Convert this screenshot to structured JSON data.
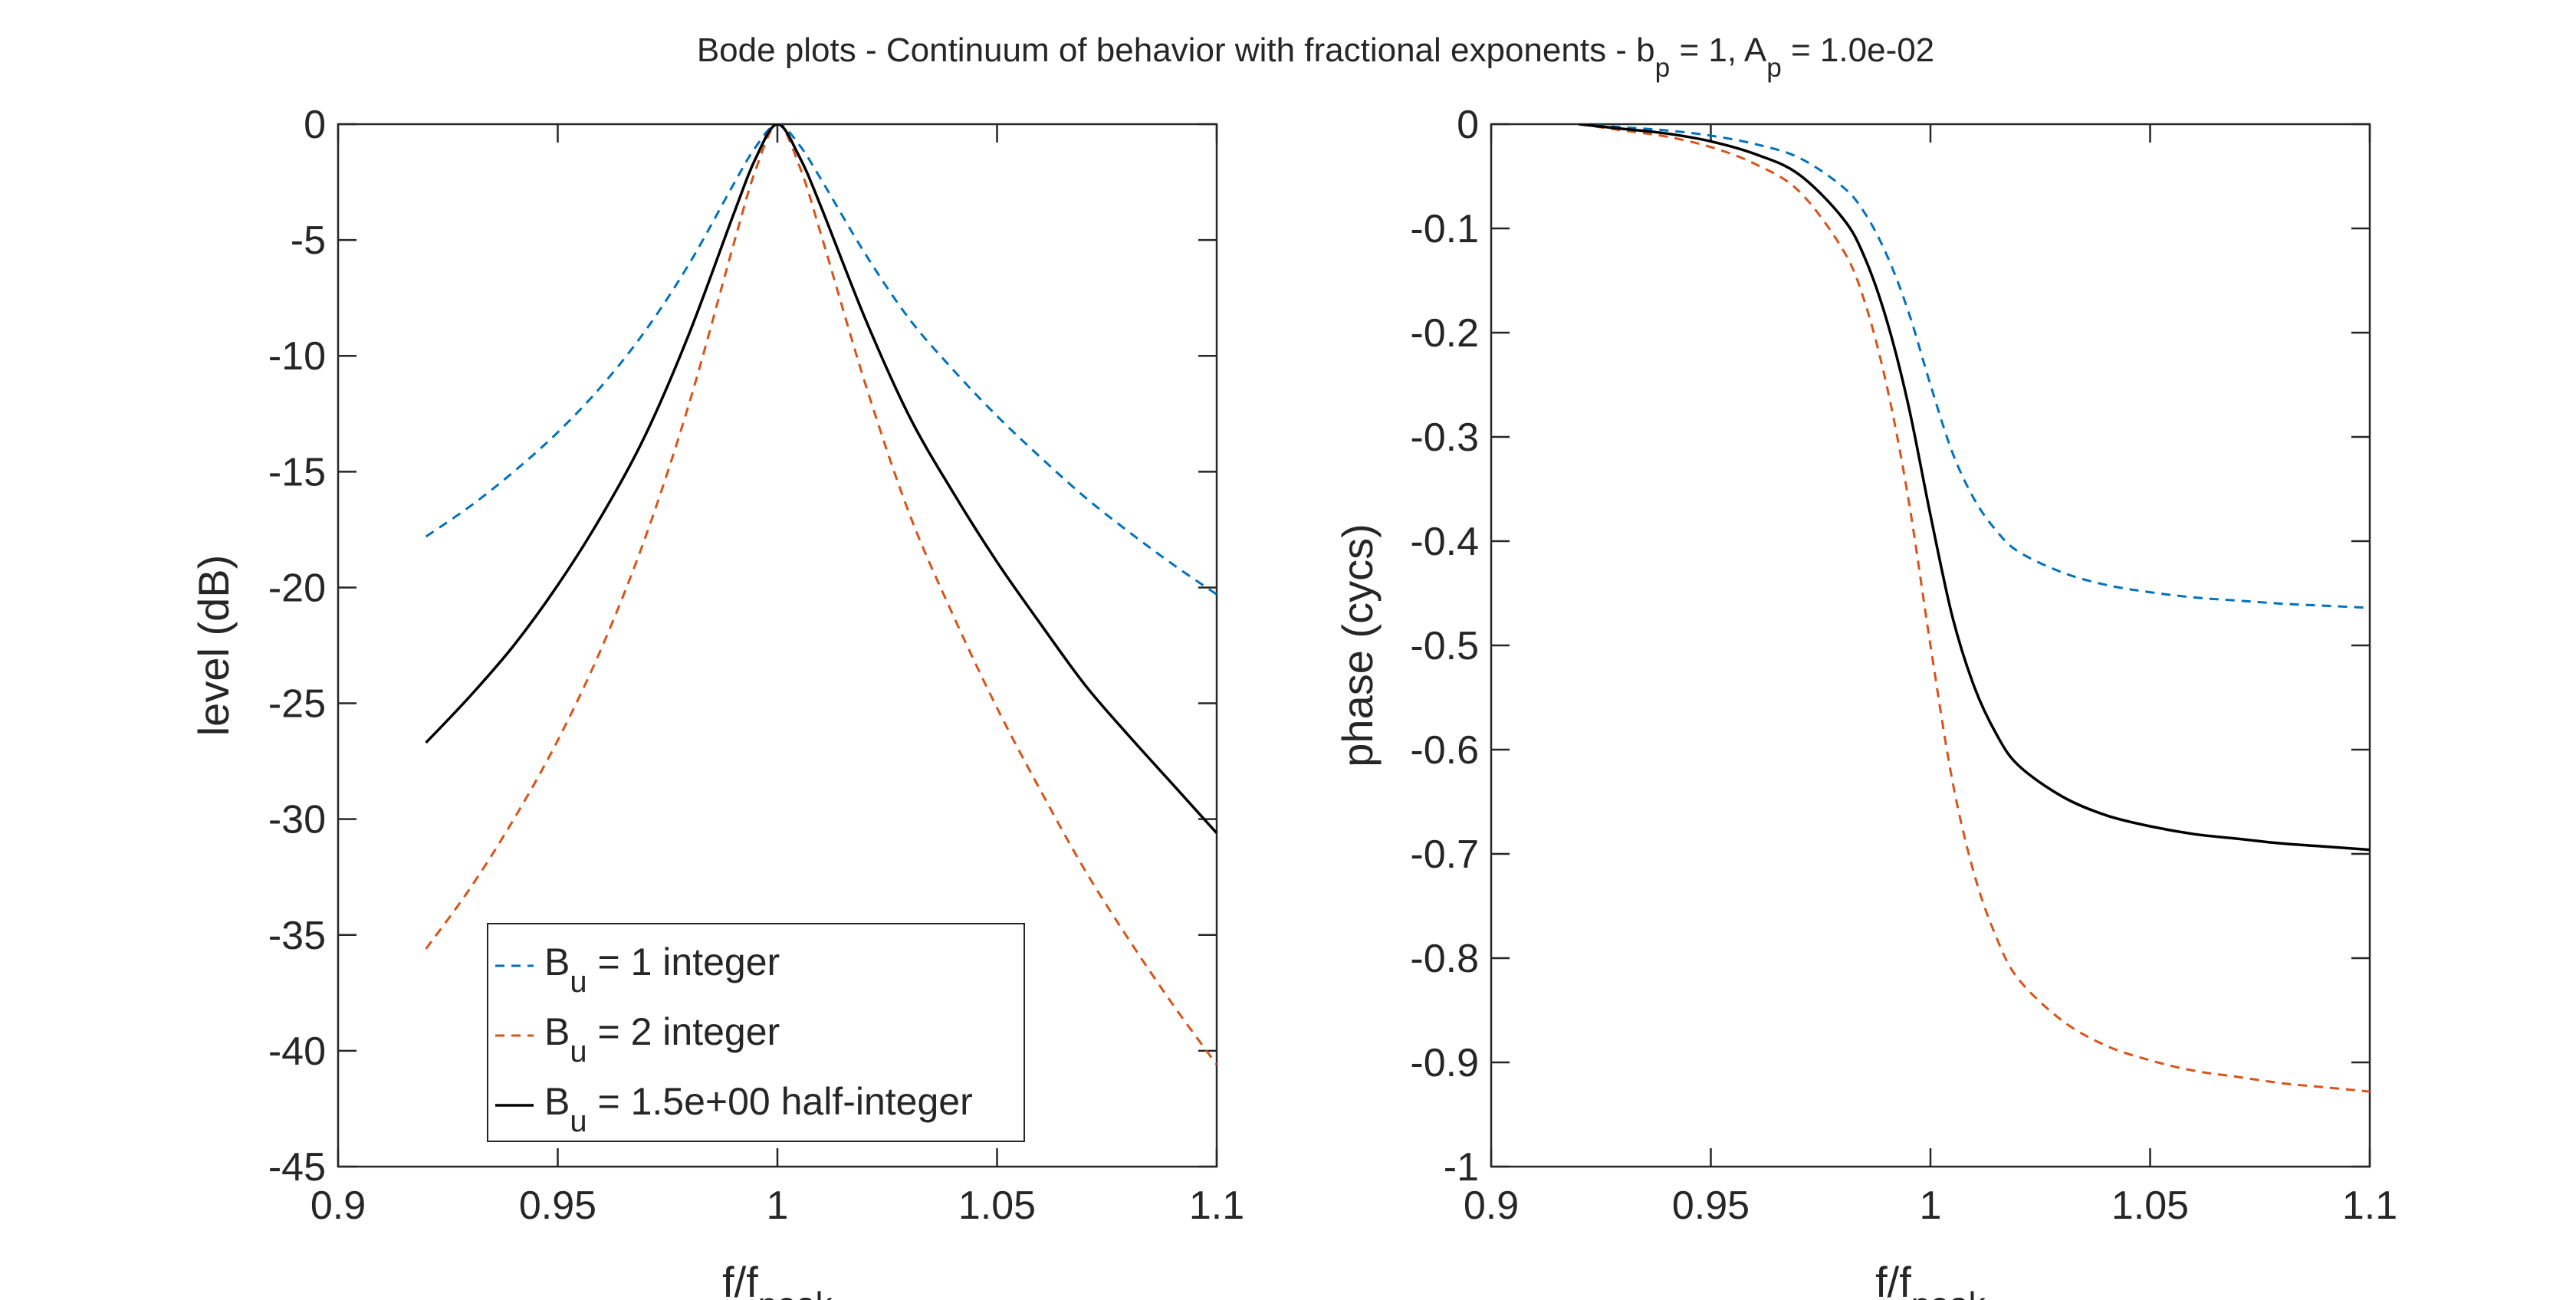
{
  "figure": {
    "title_parts": [
      {
        "t": "Bode plots - Continuum of behavior with fractional exponents - b"
      },
      {
        "t": "p",
        "sub": true
      },
      {
        "t": " = 1, A"
      },
      {
        "t": "p",
        "sub": true
      },
      {
        "t": " = 1.0e-02"
      }
    ]
  },
  "chart_data": [
    {
      "type": "line",
      "xlabel_parts": [
        {
          "t": "f/f"
        },
        {
          "t": "peak",
          "sub": true
        }
      ],
      "ylabel": "level (dB)",
      "xlim": [
        0.9,
        1.1
      ],
      "ylim": [
        -45,
        0
      ],
      "xticks": [
        0.9,
        0.95,
        1,
        1.05,
        1.1
      ],
      "xtick_labels": [
        "0.9",
        "0.95",
        "1",
        "1.05",
        "1.1"
      ],
      "yticks": [
        0,
        -5,
        -10,
        -15,
        -20,
        -25,
        -30,
        -35,
        -40,
        -45
      ],
      "ytick_labels": [
        "0",
        "-5",
        "-10",
        "-15",
        "-20",
        "-25",
        "-30",
        "-35",
        "-40",
        "-45"
      ],
      "grid": false,
      "legend_location": "bottom-left",
      "series": [
        {
          "name_parts": [
            {
              "t": "B"
            },
            {
              "t": "u",
              "sub": true
            },
            {
              "t": " = 1 integer"
            }
          ],
          "color": "#0072BD",
          "style": "dashed",
          "x": [
            0.92,
            0.93,
            0.94,
            0.95,
            0.96,
            0.97,
            0.98,
            0.99,
            0.995,
            1.0,
            1.005,
            1.01,
            1.02,
            1.03,
            1.04,
            1.05,
            1.06,
            1.07,
            1.08,
            1.09,
            1.1
          ],
          "y": [
            -17.8,
            -16.5,
            -15.0,
            -13.3,
            -11.3,
            -8.9,
            -6.0,
            -2.6,
            -1.0,
            0.0,
            -0.9,
            -2.4,
            -5.6,
            -8.4,
            -10.6,
            -12.6,
            -14.4,
            -16.1,
            -17.6,
            -19.0,
            -20.3
          ]
        },
        {
          "name_parts": [
            {
              "t": "B"
            },
            {
              "t": "u",
              "sub": true
            },
            {
              "t": " = 2 integer"
            }
          ],
          "color": "#D95319",
          "style": "dashed",
          "x": [
            0.92,
            0.93,
            0.94,
            0.95,
            0.96,
            0.97,
            0.98,
            0.99,
            0.995,
            1.0,
            1.005,
            1.01,
            1.02,
            1.03,
            1.04,
            1.05,
            1.06,
            1.07,
            1.08,
            1.09,
            1.1
          ],
          "y": [
            -35.6,
            -33.0,
            -30.0,
            -26.6,
            -22.6,
            -17.8,
            -12.0,
            -5.2,
            -2.0,
            0.0,
            -1.8,
            -4.8,
            -11.2,
            -16.8,
            -21.2,
            -25.2,
            -28.8,
            -32.2,
            -35.2,
            -38.0,
            -40.6
          ]
        },
        {
          "name_parts": [
            {
              "t": "B"
            },
            {
              "t": "u",
              "sub": true
            },
            {
              "t": " = 1.5e+00 half-integer"
            }
          ],
          "color": "#000000",
          "style": "solid",
          "x": [
            0.92,
            0.93,
            0.94,
            0.95,
            0.96,
            0.97,
            0.98,
            0.99,
            0.995,
            1.0,
            1.005,
            1.01,
            1.02,
            1.03,
            1.04,
            1.05,
            1.06,
            1.07,
            1.08,
            1.09,
            1.1
          ],
          "y": [
            -26.7,
            -24.7,
            -22.5,
            -19.9,
            -16.9,
            -13.4,
            -9.0,
            -3.9,
            -1.5,
            0.0,
            -1.4,
            -3.6,
            -8.4,
            -12.6,
            -15.9,
            -18.9,
            -21.6,
            -24.2,
            -26.4,
            -28.5,
            -30.6
          ]
        }
      ]
    },
    {
      "type": "line",
      "xlabel_parts": [
        {
          "t": "f/f"
        },
        {
          "t": "peak",
          "sub": true
        }
      ],
      "ylabel": "phase (cycs)",
      "xlim": [
        0.9,
        1.1
      ],
      "ylim": [
        -1,
        0
      ],
      "xticks": [
        0.9,
        0.95,
        1,
        1.05,
        1.1
      ],
      "xtick_labels": [
        "0.9",
        "0.95",
        "1",
        "1.05",
        "1.1"
      ],
      "yticks": [
        0,
        -0.1,
        -0.2,
        -0.3,
        -0.4,
        -0.5,
        -0.6,
        -0.7,
        -0.8,
        -0.9,
        -1
      ],
      "ytick_labels": [
        "0",
        "-0.1",
        "-0.2",
        "-0.3",
        "-0.4",
        "-0.5",
        "-0.6",
        "-0.7",
        "-0.8",
        "-0.9",
        "-1"
      ],
      "grid": false,
      "series": [
        {
          "color": "#0072BD",
          "style": "dashed",
          "x": [
            0.92,
            0.93,
            0.94,
            0.95,
            0.96,
            0.97,
            0.98,
            0.985,
            0.99,
            0.995,
            1.0,
            1.005,
            1.01,
            1.015,
            1.02,
            1.03,
            1.04,
            1.05,
            1.06,
            1.07,
            1.08,
            1.09,
            1.1
          ],
          "y": [
            0.0,
            -0.003,
            -0.006,
            -0.011,
            -0.019,
            -0.032,
            -0.06,
            -0.085,
            -0.125,
            -0.18,
            -0.25,
            -0.315,
            -0.36,
            -0.39,
            -0.41,
            -0.43,
            -0.442,
            -0.449,
            -0.454,
            -0.457,
            -0.46,
            -0.462,
            -0.464
          ]
        },
        {
          "color": "#D95319",
          "style": "dashed",
          "x": [
            0.92,
            0.93,
            0.94,
            0.95,
            0.96,
            0.97,
            0.98,
            0.985,
            0.99,
            0.995,
            1.0,
            1.005,
            1.01,
            1.015,
            1.02,
            1.03,
            1.04,
            1.05,
            1.06,
            1.07,
            1.08,
            1.09,
            1.1
          ],
          "y": [
            0.0,
            -0.006,
            -0.012,
            -0.022,
            -0.038,
            -0.064,
            -0.12,
            -0.17,
            -0.25,
            -0.36,
            -0.5,
            -0.63,
            -0.72,
            -0.78,
            -0.82,
            -0.86,
            -0.884,
            -0.898,
            -0.908,
            -0.914,
            -0.92,
            -0.924,
            -0.928
          ]
        },
        {
          "color": "#000000",
          "style": "solid",
          "x": [
            0.92,
            0.93,
            0.94,
            0.95,
            0.96,
            0.97,
            0.98,
            0.985,
            0.99,
            0.995,
            1.0,
            1.005,
            1.01,
            1.015,
            1.02,
            1.03,
            1.04,
            1.05,
            1.06,
            1.07,
            1.08,
            1.09,
            1.1
          ],
          "y": [
            0.0,
            -0.0045,
            -0.009,
            -0.0165,
            -0.0285,
            -0.048,
            -0.09,
            -0.1275,
            -0.1875,
            -0.27,
            -0.375,
            -0.4725,
            -0.54,
            -0.585,
            -0.615,
            -0.645,
            -0.663,
            -0.6735,
            -0.681,
            -0.6855,
            -0.69,
            -0.693,
            -0.696
          ]
        }
      ]
    }
  ]
}
